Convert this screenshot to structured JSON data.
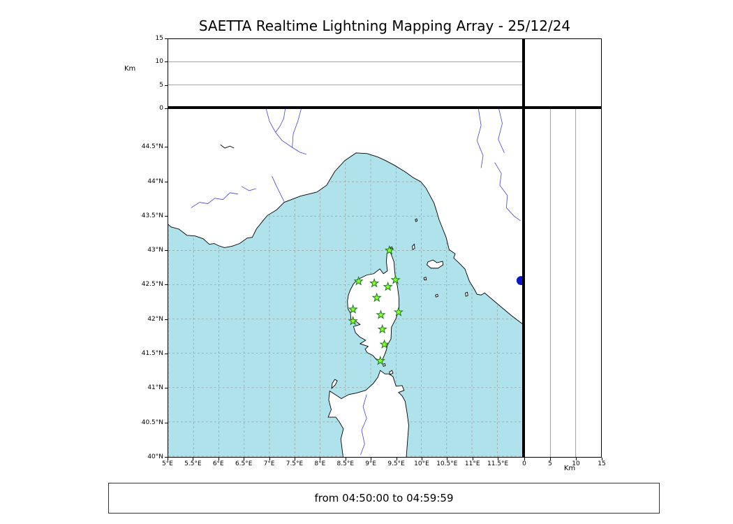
{
  "title": "SAETTA Realtime Lightning Mapping Array - 25/12/24",
  "status_text": "from 04:50:00 to 04:59:59",
  "colors": {
    "sea": "#b0e2ec",
    "land": "#ffffff",
    "coast": "#000000",
    "river": "#4444cc",
    "grid": "#999999",
    "panel_grid": "#888888",
    "station_fill": "#8cff32",
    "station_edge": "#1a7a1a",
    "dot": "#0a16c8"
  },
  "axes": {
    "km_label": "Km",
    "alt_ticks": [
      0,
      5,
      10,
      15
    ],
    "alt_max": 15,
    "alt_gridlines": [
      5,
      10
    ],
    "lon_min": 5.0,
    "lon_max": 12.02,
    "lat_min": 39.99,
    "lat_max": 45.06,
    "lon_ticks": [
      {
        "v": 5.0,
        "label": "5°E"
      },
      {
        "v": 5.5,
        "label": "5.5°E"
      },
      {
        "v": 6.0,
        "label": "6°E"
      },
      {
        "v": 6.5,
        "label": "6.5°E"
      },
      {
        "v": 7.0,
        "label": "7°E"
      },
      {
        "v": 7.5,
        "label": "7.5°E"
      },
      {
        "v": 8.0,
        "label": "8°E"
      },
      {
        "v": 8.5,
        "label": "8.5°E"
      },
      {
        "v": 9.0,
        "label": "9°E"
      },
      {
        "v": 9.5,
        "label": "9.5°E"
      },
      {
        "v": 10.0,
        "label": "10°E"
      },
      {
        "v": 10.5,
        "label": "10.5°E"
      },
      {
        "v": 11.0,
        "label": "11°E"
      },
      {
        "v": 11.5,
        "label": "11.5°E"
      }
    ],
    "lat_ticks": [
      {
        "v": 44.5,
        "label": "44.5°N"
      },
      {
        "v": 44.0,
        "label": "44°N"
      },
      {
        "v": 43.5,
        "label": "43.5°N"
      },
      {
        "v": 43.0,
        "label": "43°N"
      },
      {
        "v": 42.5,
        "label": "42.5°N"
      },
      {
        "v": 42.0,
        "label": "42°N"
      },
      {
        "v": 41.5,
        "label": "41.5°N"
      },
      {
        "v": 41.0,
        "label": "41°N"
      },
      {
        "v": 40.5,
        "label": "40.5°N"
      },
      {
        "v": 40.0,
        "label": "40°N"
      }
    ]
  },
  "map": {
    "land": [
      {
        "name": "mainland",
        "pts": [
          [
            4.93,
            45.2
          ],
          [
            12.12,
            45.2
          ],
          [
            12.12,
            41.86
          ],
          [
            11.78,
            42.05
          ],
          [
            11.49,
            42.23
          ],
          [
            11.25,
            42.38
          ],
          [
            11.18,
            42.35
          ],
          [
            11.1,
            42.36
          ],
          [
            11.05,
            42.43
          ],
          [
            10.95,
            42.55
          ],
          [
            10.86,
            42.73
          ],
          [
            10.74,
            42.82
          ],
          [
            10.64,
            42.89
          ],
          [
            10.67,
            42.95
          ],
          [
            10.55,
            43.01
          ],
          [
            10.49,
            43.19
          ],
          [
            10.35,
            43.45
          ],
          [
            10.31,
            43.55
          ],
          [
            10.25,
            43.69
          ],
          [
            10.09,
            43.91
          ],
          [
            9.99,
            44.0
          ],
          [
            9.84,
            44.06
          ],
          [
            9.69,
            44.14
          ],
          [
            9.47,
            44.24
          ],
          [
            9.29,
            44.31
          ],
          [
            9.14,
            44.36
          ],
          [
            8.93,
            44.41
          ],
          [
            8.71,
            44.42
          ],
          [
            8.49,
            44.31
          ],
          [
            8.29,
            44.15
          ],
          [
            8.13,
            43.95
          ],
          [
            7.94,
            43.85
          ],
          [
            7.61,
            43.79
          ],
          [
            7.43,
            43.74
          ],
          [
            7.29,
            43.7
          ],
          [
            7.14,
            43.59
          ],
          [
            6.96,
            43.51
          ],
          [
            6.87,
            43.43
          ],
          [
            6.74,
            43.31
          ],
          [
            6.66,
            43.19
          ],
          [
            6.56,
            43.18
          ],
          [
            6.41,
            43.1
          ],
          [
            6.26,
            43.06
          ],
          [
            6.11,
            43.04
          ],
          [
            5.99,
            43.07
          ],
          [
            5.91,
            43.1
          ],
          [
            5.81,
            43.09
          ],
          [
            5.69,
            43.17
          ],
          [
            5.53,
            43.21
          ],
          [
            5.37,
            43.22
          ],
          [
            5.21,
            43.31
          ],
          [
            5.06,
            43.34
          ],
          [
            4.93,
            43.42
          ]
        ]
      },
      {
        "name": "corsica",
        "pts": [
          [
            9.35,
            43.01
          ],
          [
            9.4,
            42.95
          ],
          [
            9.46,
            42.83
          ],
          [
            9.47,
            42.72
          ],
          [
            9.49,
            42.6
          ],
          [
            9.53,
            42.47
          ],
          [
            9.56,
            42.3
          ],
          [
            9.56,
            42.15
          ],
          [
            9.5,
            42.01
          ],
          [
            9.41,
            41.88
          ],
          [
            9.4,
            41.71
          ],
          [
            9.33,
            41.62
          ],
          [
            9.31,
            41.55
          ],
          [
            9.27,
            41.47
          ],
          [
            9.22,
            41.39
          ],
          [
            9.1,
            41.42
          ],
          [
            9.04,
            41.47
          ],
          [
            8.93,
            41.51
          ],
          [
            8.89,
            41.56
          ],
          [
            8.95,
            41.6
          ],
          [
            8.79,
            41.64
          ],
          [
            8.9,
            41.69
          ],
          [
            8.78,
            41.74
          ],
          [
            8.7,
            41.8
          ],
          [
            8.66,
            41.89
          ],
          [
            8.79,
            41.92
          ],
          [
            8.7,
            41.97
          ],
          [
            8.61,
            41.99
          ],
          [
            8.6,
            42.08
          ],
          [
            8.55,
            42.15
          ],
          [
            8.54,
            42.26
          ],
          [
            8.56,
            42.35
          ],
          [
            8.6,
            42.43
          ],
          [
            8.66,
            42.51
          ],
          [
            8.73,
            42.57
          ],
          [
            8.81,
            42.6
          ],
          [
            8.92,
            42.64
          ],
          [
            9.06,
            42.66
          ],
          [
            9.18,
            42.73
          ],
          [
            9.25,
            42.66
          ],
          [
            9.33,
            42.7
          ],
          [
            9.31,
            42.83
          ],
          [
            9.32,
            42.95
          ]
        ]
      },
      {
        "name": "sardinia",
        "pts": [
          [
            8.46,
            39.95
          ],
          [
            8.41,
            40.25
          ],
          [
            8.46,
            40.4
          ],
          [
            8.38,
            40.5
          ],
          [
            8.31,
            40.57
          ],
          [
            8.16,
            40.57
          ],
          [
            8.22,
            40.68
          ],
          [
            8.17,
            40.82
          ],
          [
            8.19,
            40.95
          ],
          [
            8.42,
            40.84
          ],
          [
            8.57,
            40.9
          ],
          [
            8.71,
            40.92
          ],
          [
            8.9,
            40.96
          ],
          [
            9.05,
            41.06
          ],
          [
            9.14,
            41.15
          ],
          [
            9.19,
            41.25
          ],
          [
            9.28,
            41.2
          ],
          [
            9.36,
            41.2
          ],
          [
            9.44,
            41.16
          ],
          [
            9.5,
            41.02
          ],
          [
            9.62,
            41.03
          ],
          [
            9.66,
            40.96
          ],
          [
            9.55,
            40.93
          ],
          [
            9.62,
            40.88
          ],
          [
            9.68,
            40.8
          ],
          [
            9.72,
            40.62
          ],
          [
            9.75,
            40.45
          ],
          [
            9.73,
            40.25
          ],
          [
            9.7,
            39.95
          ]
        ]
      },
      {
        "name": "elba",
        "pts": [
          [
            10.11,
            42.79
          ],
          [
            10.19,
            42.74
          ],
          [
            10.33,
            42.74
          ],
          [
            10.43,
            42.79
          ],
          [
            10.42,
            42.84
          ],
          [
            10.31,
            42.82
          ],
          [
            10.23,
            42.86
          ],
          [
            10.13,
            42.83
          ]
        ]
      },
      {
        "name": "asinara",
        "pts": [
          [
            8.23,
            40.99
          ],
          [
            8.3,
            41.04
          ],
          [
            8.34,
            41.1
          ],
          [
            8.29,
            41.12
          ],
          [
            8.24,
            41.06
          ]
        ]
      },
      {
        "name": "capraia",
        "pts": [
          [
            9.83,
            43.01
          ],
          [
            9.87,
            43.03
          ],
          [
            9.86,
            43.09
          ],
          [
            9.82,
            43.06
          ]
        ]
      },
      {
        "name": "gorgona",
        "pts": [
          [
            9.89,
            43.42
          ],
          [
            9.92,
            43.43
          ],
          [
            9.91,
            43.46
          ],
          [
            9.88,
            43.45
          ]
        ]
      },
      {
        "name": "pianosa",
        "pts": [
          [
            10.06,
            42.57
          ],
          [
            10.1,
            42.57
          ],
          [
            10.09,
            42.61
          ],
          [
            10.05,
            42.6
          ]
        ]
      },
      {
        "name": "montecristo",
        "pts": [
          [
            10.29,
            42.32
          ],
          [
            10.33,
            42.33
          ],
          [
            10.32,
            42.36
          ],
          [
            10.28,
            42.35
          ]
        ]
      },
      {
        "name": "giglio",
        "pts": [
          [
            10.88,
            42.33
          ],
          [
            10.92,
            42.34
          ],
          [
            10.91,
            42.39
          ],
          [
            10.87,
            42.38
          ]
        ]
      },
      {
        "name": "maddalena",
        "pts": [
          [
            9.38,
            41.19
          ],
          [
            9.44,
            41.21
          ],
          [
            9.42,
            41.25
          ],
          [
            9.37,
            41.23
          ]
        ]
      },
      {
        "name": "lavezzi",
        "pts": [
          [
            9.25,
            41.31
          ],
          [
            9.29,
            41.32
          ],
          [
            9.28,
            41.35
          ],
          [
            9.24,
            41.34
          ]
        ]
      },
      {
        "name": "giraglia",
        "pts": [
          [
            9.4,
            43.02
          ],
          [
            9.43,
            43.03
          ],
          [
            9.42,
            43.05
          ],
          [
            9.39,
            43.04
          ]
        ]
      }
    ],
    "rivers": [
      [
        [
          5.45,
          43.62
        ],
        [
          5.62,
          43.7
        ],
        [
          5.78,
          43.68
        ],
        [
          5.92,
          43.76
        ],
        [
          6.08,
          43.74
        ],
        [
          6.22,
          43.84
        ],
        [
          6.38,
          43.82
        ]
      ],
      [
        [
          6.45,
          43.93
        ],
        [
          6.6,
          43.87
        ],
        [
          6.73,
          43.9
        ]
      ],
      [
        [
          6.92,
          45.1
        ],
        [
          7.0,
          44.88
        ],
        [
          7.12,
          44.72
        ],
        [
          7.25,
          44.6
        ],
        [
          7.45,
          44.5
        ],
        [
          7.6,
          44.43
        ],
        [
          7.73,
          44.4
        ]
      ],
      [
        [
          7.32,
          45.1
        ],
        [
          7.28,
          44.92
        ],
        [
          7.2,
          44.8
        ],
        [
          7.12,
          44.72
        ]
      ],
      [
        [
          7.64,
          45.1
        ],
        [
          7.56,
          44.88
        ],
        [
          7.47,
          44.7
        ],
        [
          7.45,
          44.5
        ]
      ],
      [
        [
          11.12,
          45.1
        ],
        [
          11.18,
          44.82
        ],
        [
          11.1,
          44.6
        ],
        [
          11.22,
          44.38
        ],
        [
          11.18,
          44.2
        ]
      ],
      [
        [
          11.52,
          45.1
        ],
        [
          11.6,
          44.85
        ],
        [
          11.52,
          44.62
        ],
        [
          11.64,
          44.42
        ]
      ],
      [
        [
          11.45,
          44.28
        ],
        [
          11.58,
          44.12
        ],
        [
          11.55,
          43.95
        ],
        [
          11.7,
          43.8
        ],
        [
          11.68,
          43.62
        ],
        [
          11.83,
          43.5
        ],
        [
          11.96,
          43.43
        ]
      ],
      [
        [
          7.05,
          44.08
        ],
        [
          7.13,
          43.95
        ],
        [
          7.21,
          43.83
        ],
        [
          7.29,
          43.71
        ]
      ],
      [
        [
          8.92,
          40.9
        ],
        [
          8.85,
          40.72
        ],
        [
          8.92,
          40.55
        ],
        [
          8.82,
          40.38
        ],
        [
          8.88,
          40.18
        ],
        [
          8.8,
          40.02
        ]
      ]
    ],
    "dark_lines": [
      [
        [
          6.03,
          44.54
        ],
        [
          6.12,
          44.49
        ],
        [
          6.22,
          44.52
        ],
        [
          6.3,
          44.49
        ]
      ]
    ],
    "stations": [
      [
        9.37,
        43.0
      ],
      [
        8.76,
        42.55
      ],
      [
        9.07,
        42.52
      ],
      [
        9.34,
        42.47
      ],
      [
        9.49,
        42.57
      ],
      [
        9.12,
        42.31
      ],
      [
        8.65,
        42.14
      ],
      [
        9.2,
        42.06
      ],
      [
        9.55,
        42.1
      ],
      [
        8.65,
        41.97
      ],
      [
        9.23,
        41.85
      ],
      [
        9.27,
        41.63
      ],
      [
        9.19,
        41.39
      ]
    ],
    "dot": {
      "lon": 11.97,
      "lat": 42.56
    }
  },
  "chart_data": {
    "type": "scatter",
    "title": "SAETTA Realtime Lightning Mapping Array - 25/12/24",
    "time_window": "from 04:50:00 to 04:59:59",
    "xlim": [
      5.0,
      12.02
    ],
    "ylim": [
      39.99,
      45.06
    ],
    "altitude_axis_km": {
      "range": [
        0,
        15
      ],
      "ticks": [
        0,
        5,
        10,
        15
      ]
    },
    "grid": true,
    "series": [
      {
        "name": "saetta-stations",
        "marker": "star",
        "points": [
          [
            9.37,
            43.0
          ],
          [
            8.76,
            42.55
          ],
          [
            9.07,
            42.52
          ],
          [
            9.34,
            42.47
          ],
          [
            9.49,
            42.57
          ],
          [
            9.12,
            42.31
          ],
          [
            8.65,
            42.14
          ],
          [
            9.2,
            42.06
          ],
          [
            9.55,
            42.1
          ],
          [
            8.65,
            41.97
          ],
          [
            9.23,
            41.85
          ],
          [
            9.27,
            41.63
          ],
          [
            9.19,
            41.39
          ]
        ]
      },
      {
        "name": "detection",
        "marker": "circle",
        "points": [
          [
            11.97,
            42.56
          ]
        ]
      }
    ]
  }
}
